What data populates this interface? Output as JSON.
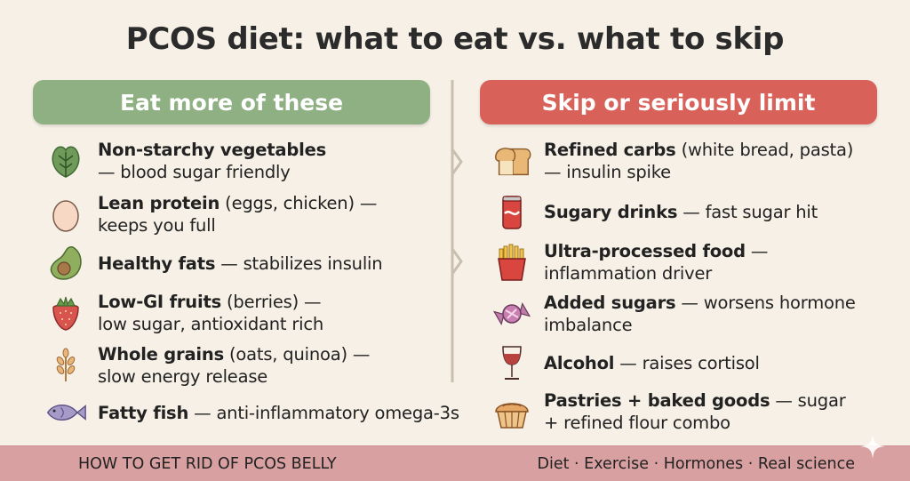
{
  "title": "PCOS diet: what to eat vs. what to skip",
  "left": {
    "header": "Eat more of these",
    "color": "#8fb083",
    "items": [
      {
        "icon": "leafy-greens-icon",
        "bold": "Non-starchy vegetables",
        "rest": " — blood sugar friendly"
      },
      {
        "icon": "egg-icon",
        "bold": "Lean protein",
        "rest": " (eggs, chicken) — keeps you full"
      },
      {
        "icon": "avocado-icon",
        "bold": "Healthy fats",
        "rest": " — stabilizes insulin"
      },
      {
        "icon": "strawberry-icon",
        "bold": "Low-GI fruits",
        "rest": " (berries) — low sugar, antioxidant rich"
      },
      {
        "icon": "wheat-icon",
        "bold": "Whole grains",
        "rest": " (oats, quinoa) — slow energy release"
      },
      {
        "icon": "fish-icon",
        "bold": "Fatty fish",
        "rest": " — anti-inflammatory omega-3s"
      }
    ]
  },
  "right": {
    "header": "Skip or seriously limit",
    "color": "#d8625a",
    "items": [
      {
        "icon": "bread-icon",
        "bold": "Refined carbs",
        "rest": " (white bread, pasta) — insulin spike"
      },
      {
        "icon": "soda-can-icon",
        "bold": "Sugary drinks",
        "rest": " — fast sugar hit"
      },
      {
        "icon": "fries-icon",
        "bold": "Ultra-processed food",
        "rest": " — inflammation driver"
      },
      {
        "icon": "candy-icon",
        "bold": "Added sugars",
        "rest": " — worsens hormone imbalance"
      },
      {
        "icon": "wine-glass-icon",
        "bold": "Alcohol",
        "rest": " — raises cortisol"
      },
      {
        "icon": "pie-icon",
        "bold": "Pastries + baked goods",
        "rest": " — sugar + refined flour combo"
      }
    ]
  },
  "footer": {
    "left": "HOW TO GET RID OF PCOS BELLY",
    "right": "Diet · Exercise · Hormones · Real science",
    "color": "#d9a0a2"
  }
}
